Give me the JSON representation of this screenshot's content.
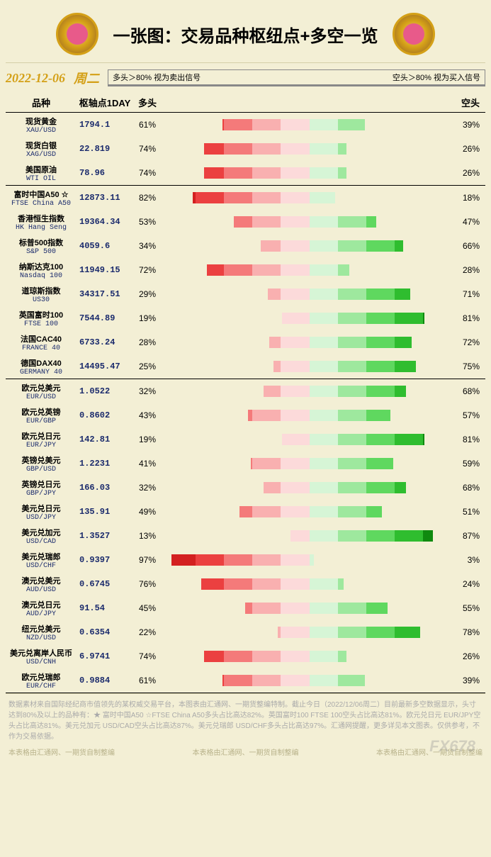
{
  "title": "一张图：交易品种枢纽点+多空一览",
  "date": "2022-12-06",
  "weekday": "周二",
  "legend": {
    "left_text": "多头＞80%  视为卖出信号",
    "right_text": "空头＞80%  视为买入信号",
    "swatches": [
      "#d32020",
      "#eb4040",
      "#f47a7a",
      "#f9b0b0",
      "#fcdada",
      "#d6f5d6",
      "#9ee89e",
      "#5fd85f",
      "#2fbd2f",
      "#0f8a0f"
    ]
  },
  "columns": {
    "name": "品种",
    "pivot": "枢轴点1DAY",
    "long": "多头",
    "short": "空头"
  },
  "red_colors": [
    "#d32020",
    "#eb4040",
    "#f47a7a",
    "#f9b0b0",
    "#fcdada"
  ],
  "green_colors": [
    "#d6f5d6",
    "#9ee89e",
    "#5fd85f",
    "#2fbd2f",
    "#0f8a0f"
  ],
  "sections": [
    {
      "rows": [
        {
          "cn": "现货黄金",
          "en": "XAU/USD",
          "pivot": "1794.1",
          "long": 61,
          "short": 39
        },
        {
          "cn": "现货白银",
          "en": "XAG/USD",
          "pivot": "22.819",
          "long": 74,
          "short": 26
        },
        {
          "cn": "美国原油",
          "en": "WTI OIL",
          "pivot": "78.96",
          "long": 74,
          "short": 26
        }
      ]
    },
    {
      "rows": [
        {
          "cn": "富时中国A50 ☆",
          "en": "FTSE China A50",
          "pivot": "12873.11",
          "long": 82,
          "short": 18,
          "star": true
        },
        {
          "cn": "香港恒生指数",
          "en": "HK Hang Seng",
          "pivot": "19364.34",
          "long": 53,
          "short": 47
        },
        {
          "cn": "标普500指数",
          "en": "S&P 500",
          "pivot": "4059.6",
          "long": 34,
          "short": 66
        },
        {
          "cn": "纳斯达克100",
          "en": "Nasdaq 100",
          "pivot": "11949.15",
          "long": 72,
          "short": 28
        },
        {
          "cn": "道琼斯指数",
          "en": "US30",
          "pivot": "34317.51",
          "long": 29,
          "short": 71
        },
        {
          "cn": "英国富时100",
          "en": "FTSE 100",
          "pivot": "7544.89",
          "long": 19,
          "short": 81
        },
        {
          "cn": "法国CAC40",
          "en": "FRANCE 40",
          "pivot": "6733.24",
          "long": 28,
          "short": 72
        },
        {
          "cn": "德国DAX40",
          "en": "GERMANY 40",
          "pivot": "14495.47",
          "long": 25,
          "short": 75
        }
      ]
    },
    {
      "rows": [
        {
          "cn": "欧元兑美元",
          "en": "EUR/USD",
          "pivot": "1.0522",
          "long": 32,
          "short": 68
        },
        {
          "cn": "欧元兑英镑",
          "en": "EUR/GBP",
          "pivot": "0.8602",
          "long": 43,
          "short": 57
        },
        {
          "cn": "欧元兑日元",
          "en": "EUR/JPY",
          "pivot": "142.81",
          "long": 19,
          "short": 81
        },
        {
          "cn": "英镑兑美元",
          "en": "GBP/USD",
          "pivot": "1.2231",
          "long": 41,
          "short": 59
        },
        {
          "cn": "英镑兑日元",
          "en": "GBP/JPY",
          "pivot": "166.03",
          "long": 32,
          "short": 68
        },
        {
          "cn": "美元兑日元",
          "en": "USD/JPY",
          "pivot": "135.91",
          "long": 49,
          "short": 51
        },
        {
          "cn": "美元兑加元",
          "en": "USD/CAD",
          "pivot": "1.3527",
          "long": 13,
          "short": 87
        },
        {
          "cn": "美元兑瑞郎",
          "en": "USD/CHF",
          "pivot": "0.9397",
          "long": 97,
          "short": 3
        },
        {
          "cn": "澳元兑美元",
          "en": "AUD/USD",
          "pivot": "0.6745",
          "long": 76,
          "short": 24
        },
        {
          "cn": "澳元兑日元",
          "en": "AUD/JPY",
          "pivot": "91.54",
          "long": 45,
          "short": 55
        },
        {
          "cn": "纽元兑美元",
          "en": "NZD/USD",
          "pivot": "0.6354",
          "long": 22,
          "short": 78
        },
        {
          "cn": "美元兑离岸人民币",
          "en": "USD/CNH",
          "pivot": "6.9741",
          "long": 74,
          "short": 26
        },
        {
          "cn": "欧元兑瑞郎",
          "en": "EUR/CHF",
          "pivot": "0.9884",
          "long": 61,
          "short": 39
        }
      ]
    }
  ],
  "footer": {
    "top": "数据素材来自国际经纪商市值领先的某权威交易平台，本图表由汇通网、一期货整编特制。截止今日（2022/12/06周二）目前最新多空数据显示，头寸达到80%及以上的品种有：★ 富时中国A50 ☆FTSE China A50多头占比高达82%。英国富时100 FTSE 100空头占比高达81%。欧元兑日元 EUR/JPY空头占比高达81%。美元兑加元 USD/CAD空头占比高达87%。美元兑瑞郎 USD/CHF多头占比高达97%。汇通网提醒，更多详见本文图表。仅供参考，不作为交易依据。",
    "bottom": "本表格由汇通网、一期货自制整编",
    "watermark": "FX678"
  }
}
